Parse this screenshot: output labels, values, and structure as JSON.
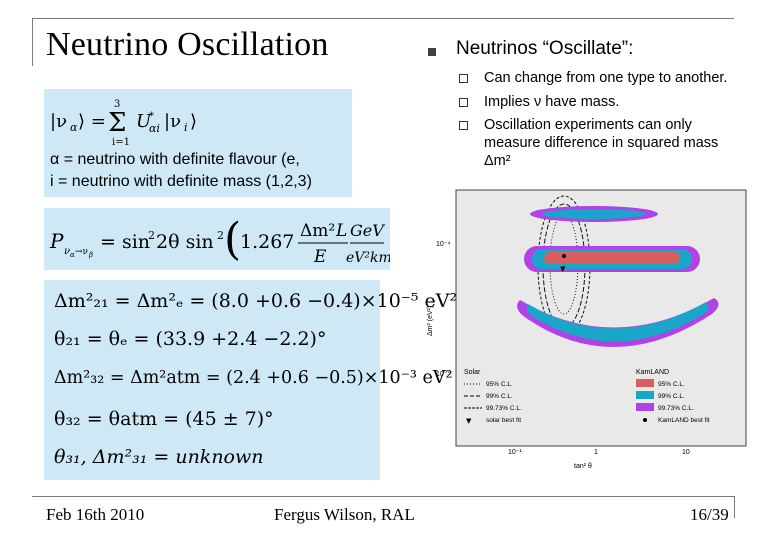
{
  "slide": {
    "title": "Neutrino Oscillation",
    "heading": "Neutrinos “Oscillate”:",
    "bullets": [
      "Can change from one type to another.",
      "Implies ν have mass.",
      "Oscillation experiments can only",
      "measure difference in squared mass",
      "Δm²"
    ]
  },
  "box1": {
    "def_alpha": "α = neutrino with definite flavour (e,",
    "def_i": "i = neutrino with definite mass (1,2,3)"
  },
  "box2": {
    "prob": "P"
  },
  "box3": {
    "r1": "Δm²₂₁ = Δm²ₑ = (8.0 +0.6 −0.4)×10⁻⁵ eV²",
    "r2": "θ₂₁ = θₑ = (33.9 +2.4 −2.2)°",
    "r3": "Δm²₃₂ = Δm²atm = (2.4 +0.6 −0.5)×10⁻³ eV²",
    "r4": "θ₃₂ = θatm = (45 ± 7)°",
    "r5": "θ₃₁, Δm²₃₁ = unknown"
  },
  "plot": {
    "ylabel": "Δm² (eV²)",
    "xlabel": "tan² θ",
    "yticks": [
      "10⁻⁴",
      "10⁻⁵"
    ],
    "xticks": [
      "10⁻¹",
      "1",
      "10"
    ],
    "legend_solar_title": "Solar",
    "legend_solar": [
      "95% C.L.",
      "99% C.L.",
      "99.73% C.L.",
      "solar best fit"
    ],
    "legend_kam_title": "KamLAND",
    "legend_kam": [
      "95% C.L.",
      "99% C.L.",
      "99.73% C.L.",
      "KamLAND best fit"
    ],
    "colors": {
      "kam95": "#d95f5f",
      "kam99": "#19a6c8",
      "kam9973": "#b042e8",
      "bg": "#e9e9e9"
    }
  },
  "footer": {
    "date": "Feb 16th 2010",
    "author": "Fergus Wilson, RAL",
    "page": "16/39"
  }
}
